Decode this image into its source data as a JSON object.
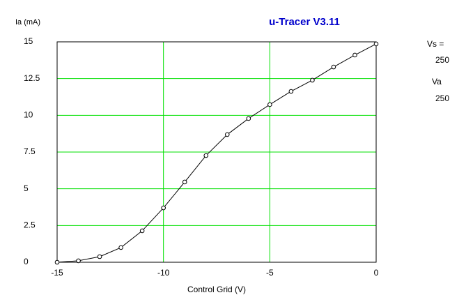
{
  "chart_data": {
    "type": "line",
    "title": "u-Tracer V3.11",
    "y_label": "Ia (mA)",
    "x_label": "Control Grid (V)",
    "annotations": [
      "Vs =",
      "250",
      "Va",
      "250"
    ],
    "x": [
      -15,
      -14,
      -13,
      -12,
      -11,
      -10,
      -9,
      -8,
      -7,
      -6,
      -5,
      -4,
      -3,
      -2,
      -1,
      0
    ],
    "series": [
      {
        "color": "#000000",
        "values": [
          0,
          0.1,
          0.38,
          1.0,
          2.14,
          3.7,
          5.46,
          7.26,
          8.69,
          9.78,
          10.73,
          11.63,
          12.39,
          13.29,
          14.1,
          14.86
        ]
      }
    ],
    "xlim": [
      -15,
      0
    ],
    "ylim": [
      0,
      15
    ],
    "xticks": [
      -15,
      -10,
      -5,
      0
    ],
    "yticks": [
      0,
      2.5,
      5,
      7.5,
      10,
      12.5,
      15
    ],
    "grid": true,
    "grid_color": "#00e000",
    "title_color": "#0000cc"
  }
}
